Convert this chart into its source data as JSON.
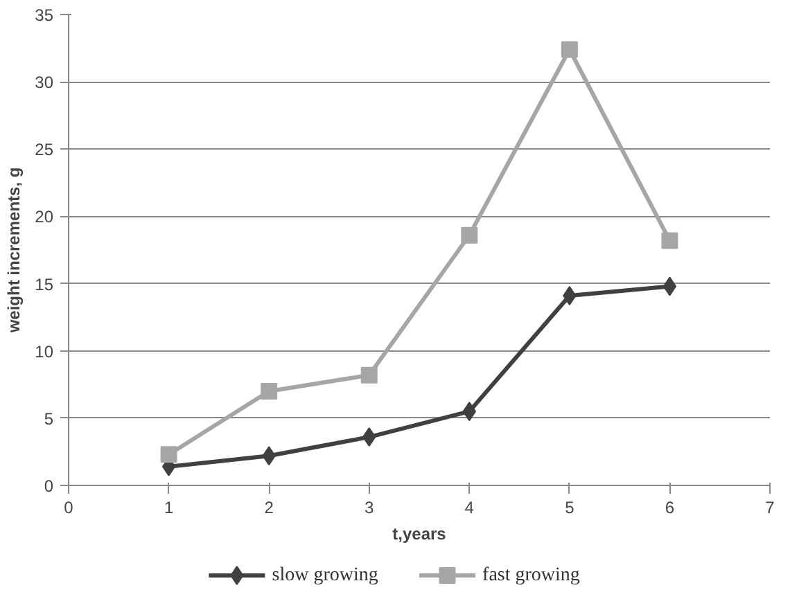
{
  "chart_data": {
    "type": "line",
    "xlabel": "t,years",
    "ylabel": "weight increments, g",
    "x": [
      1,
      2,
      3,
      4,
      5,
      6
    ],
    "series": [
      {
        "name": "slow growing",
        "color": "#404040",
        "marker": "diamond",
        "values": [
          1.4,
          2.2,
          3.6,
          5.5,
          14.1,
          14.8
        ]
      },
      {
        "name": "fast growing",
        "color": "#a6a6a6",
        "marker": "square",
        "values": [
          2.3,
          7.0,
          8.2,
          18.6,
          32.4,
          18.2
        ]
      }
    ],
    "xlim": [
      0,
      7
    ],
    "xticks": [
      0,
      1,
      2,
      3,
      4,
      5,
      6,
      7
    ],
    "ylim": [
      0,
      35
    ],
    "yticks": [
      0,
      5,
      10,
      15,
      20,
      25,
      30,
      35
    ],
    "grid": "y",
    "legend": "bottom",
    "line_style": "solid"
  }
}
